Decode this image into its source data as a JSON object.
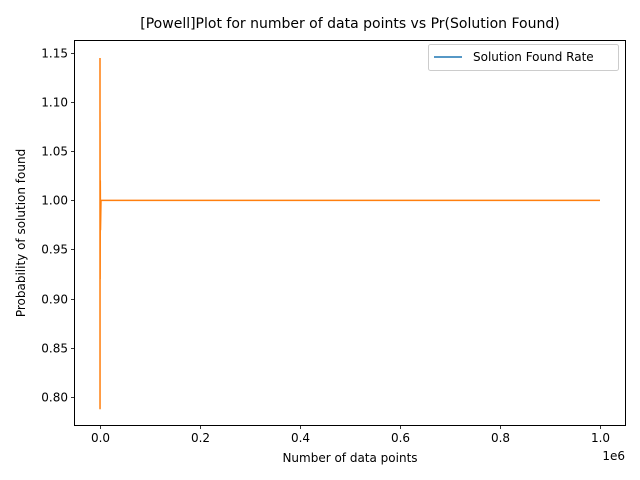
{
  "chart_data": {
    "type": "line",
    "title": "[Powell]Plot for number of data points vs Pr(Solution Found)",
    "xlabel": "Number of data points",
    "ylabel": "Probability of solution found",
    "x_offset_label": "1e6",
    "xlim": [
      -50000,
      1050000
    ],
    "ylim": [
      0.7713,
      1.1623
    ],
    "x_ticks": [
      0,
      200000,
      400000,
      600000,
      800000,
      1000000
    ],
    "x_tick_labels": [
      "0.0",
      "0.2",
      "0.4",
      "0.6",
      "0.8",
      "1.0"
    ],
    "y_ticks": [
      0.8,
      0.85,
      0.9,
      0.95,
      1.0,
      1.05,
      1.1,
      1.15
    ],
    "y_tick_labels": [
      "0.80",
      "0.85",
      "0.90",
      "0.95",
      "1.00",
      "1.05",
      "1.10",
      "1.15"
    ],
    "grid": false,
    "legend_position": "upper right",
    "legend": [
      {
        "name": "Solution Found Rate",
        "color": "#1f77b4"
      }
    ],
    "series": [
      {
        "name": "Solution Found Rate",
        "color": "#1f77b4",
        "x": [
          1000000
        ],
        "y": [
          1.0
        ]
      },
      {
        "color": "#ff7f0e",
        "x": [
          0,
          50,
          100,
          300,
          600,
          1000,
          2000,
          5000,
          10000,
          100000,
          500000,
          1000000
        ],
        "y": [
          1.145,
          0.788,
          1.08,
          0.92,
          1.02,
          0.97,
          1.0,
          1.0,
          1.0,
          1.0,
          1.0,
          1.0
        ]
      }
    ]
  }
}
